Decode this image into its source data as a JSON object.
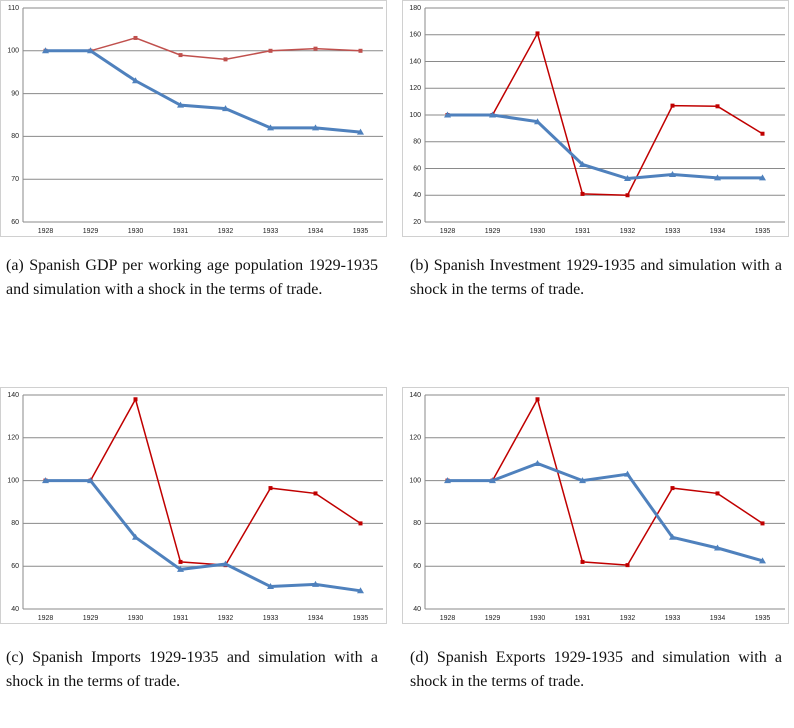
{
  "chart_data": [
    {
      "type": "line",
      "caption": "(a) Spanish GDP per working age population 1929-1935 and simulation with a shock in the terms of trade.",
      "categories": [
        "1928",
        "1929",
        "1930",
        "1931",
        "1932",
        "1933",
        "1934",
        "1935"
      ],
      "series": [
        {
          "color": "#c0504d",
          "values": [
            100,
            100,
            103,
            99,
            98,
            100,
            100.5,
            100
          ]
        },
        {
          "color": "#4f81bd",
          "values": [
            100,
            100,
            93,
            87.3,
            86.5,
            82,
            82,
            81
          ]
        }
      ],
      "ylim": [
        60,
        110
      ],
      "yticks": [
        60,
        70,
        80,
        90,
        100,
        110
      ],
      "grid": true
    },
    {
      "type": "line",
      "caption": "(b) Spanish Investment 1929-1935 and simulation with a shock in the terms of trade.",
      "categories": [
        "1928",
        "1929",
        "1930",
        "1931",
        "1932",
        "1933",
        "1934",
        "1935"
      ],
      "series": [
        {
          "color": "#c00000",
          "values": [
            100,
            100,
            161,
            41,
            40,
            107,
            106.5,
            86
          ]
        },
        {
          "color": "#4f81bd",
          "values": [
            100,
            100,
            95,
            63,
            52.5,
            55.5,
            53,
            53
          ]
        }
      ],
      "ylim": [
        20,
        180
      ],
      "yticks": [
        20,
        40,
        60,
        80,
        100,
        120,
        140,
        160,
        180
      ],
      "grid": true
    },
    {
      "type": "line",
      "caption": "(c) Spanish Imports 1929-1935 and simulation with a shock in the terms of trade.",
      "categories": [
        "1928",
        "1929",
        "1930",
        "1931",
        "1932",
        "1933",
        "1934",
        "1935"
      ],
      "series": [
        {
          "color": "#c00000",
          "values": [
            100,
            100,
            138,
            62,
            60.5,
            96.5,
            94,
            80
          ]
        },
        {
          "color": "#4f81bd",
          "values": [
            100,
            100,
            73.5,
            58.5,
            61,
            50.5,
            51.5,
            48.5
          ]
        }
      ],
      "ylim": [
        40,
        140
      ],
      "yticks": [
        40,
        60,
        80,
        100,
        120,
        140
      ],
      "grid": true
    },
    {
      "type": "line",
      "caption": "(d) Spanish Exports 1929-1935 and simulation with a shock in the terms of trade.",
      "categories": [
        "1928",
        "1929",
        "1930",
        "1931",
        "1932",
        "1933",
        "1934",
        "1935"
      ],
      "series": [
        {
          "color": "#c00000",
          "values": [
            100,
            100,
            138,
            62,
            60.5,
            96.5,
            94,
            80
          ]
        },
        {
          "color": "#4f81bd",
          "values": [
            100,
            100,
            108,
            100,
            103,
            73.5,
            68.5,
            62.5
          ]
        }
      ],
      "ylim": [
        40,
        140
      ],
      "yticks": [
        40,
        60,
        80,
        100,
        120,
        140
      ],
      "grid": true
    }
  ]
}
